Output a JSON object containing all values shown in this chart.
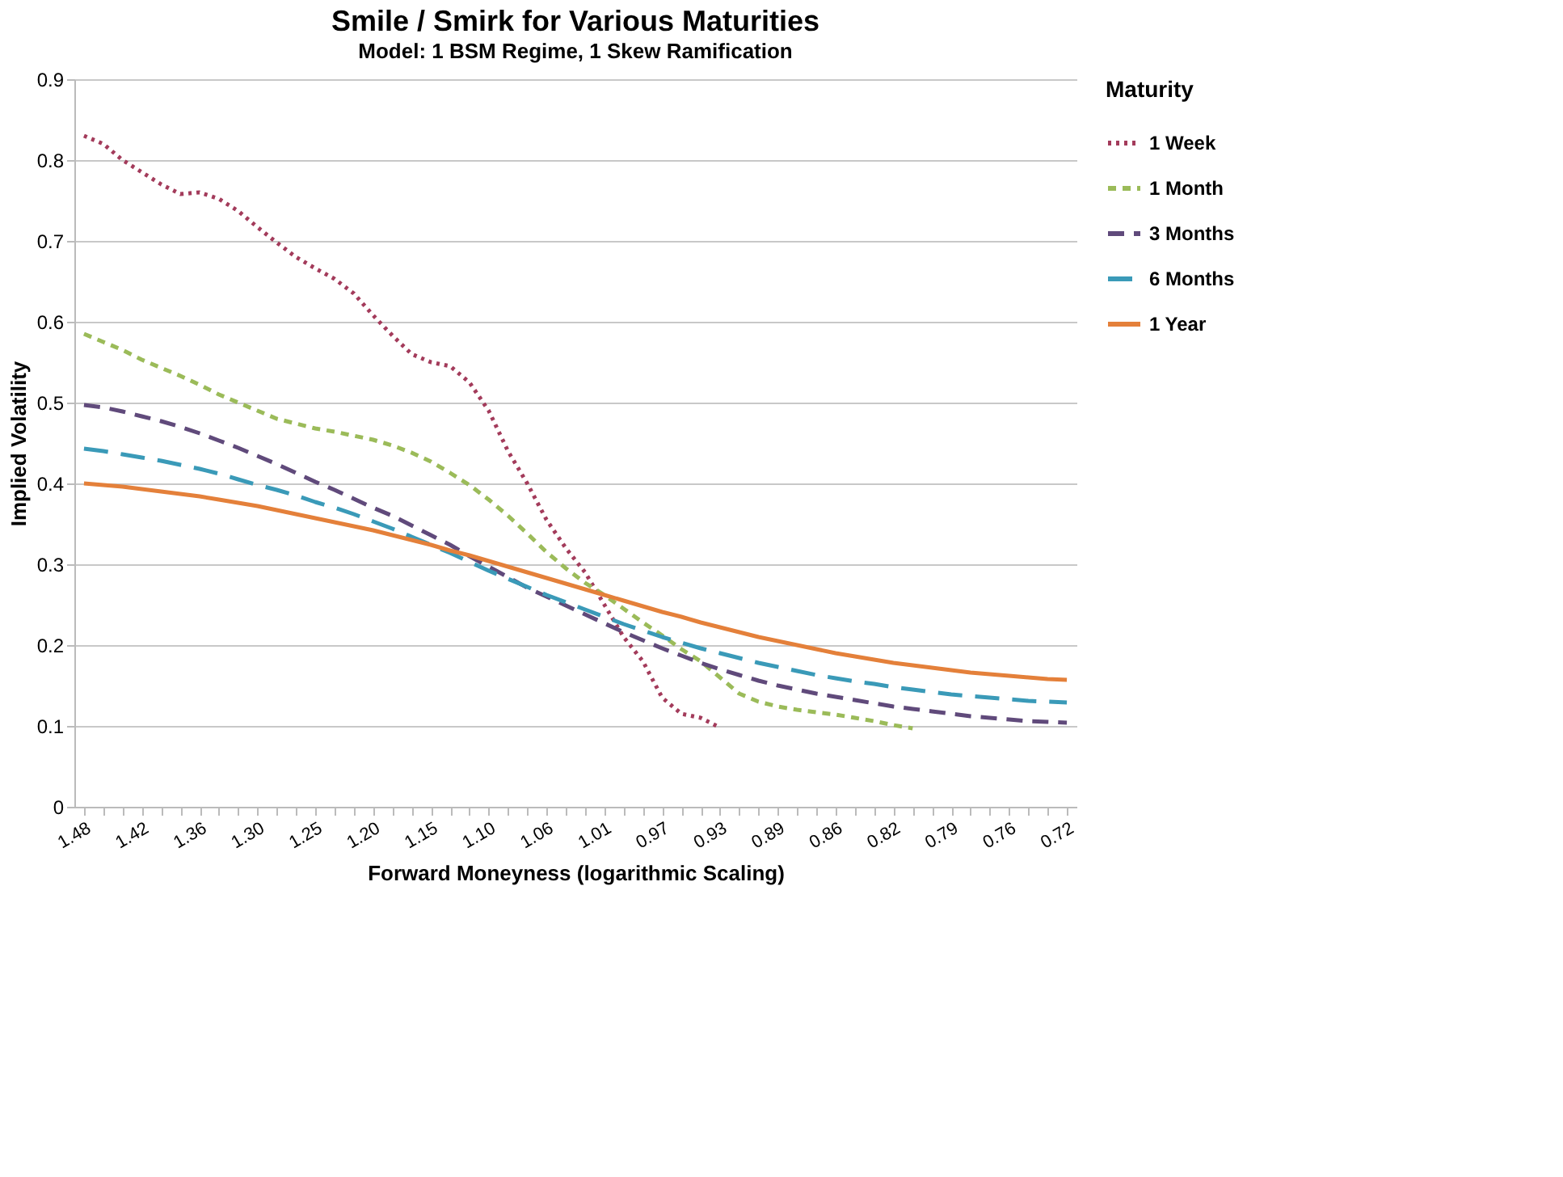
{
  "chart_data": {
    "type": "line",
    "title": "Smile / Smirk for Various Maturities",
    "subtitle": "Model: 1 BSM Regime, 1 Skew Ramification",
    "xlabel": "Forward Moneyness (logarithmic Scaling)",
    "ylabel": "Implied Volatility",
    "legend_title": "Maturity",
    "legend": "right",
    "grid": "y",
    "marker": "none",
    "categories": [
      "1.48",
      null,
      null,
      "1.42",
      null,
      null,
      "1.36",
      null,
      null,
      "1.30",
      null,
      null,
      "1.25",
      null,
      null,
      "1.20",
      null,
      null,
      "1.15",
      null,
      null,
      "1.10",
      null,
      null,
      "1.06",
      null,
      null,
      "1.01",
      null,
      null,
      "0.97",
      null,
      null,
      "0.93",
      null,
      null,
      "0.89",
      null,
      null,
      "0.86",
      null,
      null,
      "0.82",
      null,
      null,
      "0.79",
      null,
      null,
      "0.76",
      null,
      null,
      "0.72"
    ],
    "ylim": [
      0,
      0.9
    ],
    "yticks": [
      0,
      0.1,
      0.2,
      0.3,
      0.4,
      0.5,
      0.6,
      0.7,
      0.8,
      0.9
    ],
    "series": [
      {
        "name": "1 Week",
        "color": "#a33b5b",
        "line_style": "dotted",
        "values": [
          0.83,
          0.82,
          0.8,
          0.785,
          0.77,
          0.758,
          0.76,
          0.752,
          0.737,
          0.717,
          0.698,
          0.68,
          0.666,
          0.653,
          0.635,
          0.608,
          0.583,
          0.56,
          0.55,
          0.545,
          0.525,
          0.49,
          0.44,
          0.4,
          0.355,
          0.32,
          0.29,
          0.25,
          0.21,
          0.18,
          0.135,
          0.115,
          0.11,
          0.098,
          null,
          null,
          null,
          null,
          null,
          null,
          null,
          null,
          null,
          null,
          null,
          null,
          null,
          null,
          null,
          null,
          null,
          null
        ]
      },
      {
        "name": "1 Month",
        "color": "#9bbb59",
        "line_style": "dashed",
        "values": [
          0.585,
          0.575,
          0.565,
          0.553,
          0.543,
          0.533,
          0.522,
          0.51,
          0.5,
          0.49,
          0.48,
          0.474,
          0.468,
          0.464,
          0.459,
          0.454,
          0.447,
          0.438,
          0.427,
          0.413,
          0.398,
          0.38,
          0.36,
          0.338,
          0.315,
          0.295,
          0.277,
          0.262,
          0.245,
          0.228,
          0.212,
          0.195,
          0.18,
          0.16,
          0.14,
          0.13,
          0.124,
          0.12,
          0.117,
          0.114,
          0.11,
          0.106,
          0.101,
          0.097,
          null,
          null,
          null,
          null,
          null,
          null,
          null,
          null
        ]
      },
      {
        "name": "3 Months",
        "color": "#604a7b",
        "line_style": "dashed",
        "values": [
          0.497,
          0.494,
          0.489,
          0.483,
          0.477,
          0.47,
          0.462,
          0.453,
          0.444,
          0.434,
          0.424,
          0.413,
          0.402,
          0.392,
          0.381,
          0.37,
          0.36,
          0.348,
          0.336,
          0.324,
          0.31,
          0.297,
          0.284,
          0.271,
          0.26,
          0.249,
          0.238,
          0.227,
          0.216,
          0.206,
          0.196,
          0.187,
          0.178,
          0.17,
          0.163,
          0.156,
          0.15,
          0.145,
          0.14,
          0.136,
          0.132,
          0.128,
          0.124,
          0.121,
          0.118,
          0.115,
          0.112,
          0.11,
          0.108,
          0.106,
          0.105,
          0.104
        ]
      },
      {
        "name": "6 Months",
        "color": "#3a9ab8",
        "line_style": "dashed",
        "values": [
          0.443,
          0.44,
          0.436,
          0.432,
          0.428,
          0.423,
          0.418,
          0.412,
          0.405,
          0.398,
          0.392,
          0.385,
          0.377,
          0.37,
          0.362,
          0.353,
          0.344,
          0.334,
          0.324,
          0.314,
          0.303,
          0.292,
          0.282,
          0.272,
          0.262,
          0.253,
          0.244,
          0.235,
          0.226,
          0.218,
          0.21,
          0.203,
          0.196,
          0.19,
          0.184,
          0.178,
          0.173,
          0.168,
          0.163,
          0.159,
          0.155,
          0.152,
          0.148,
          0.145,
          0.142,
          0.139,
          0.137,
          0.135,
          0.133,
          0.131,
          0.13,
          0.129
        ]
      },
      {
        "name": "1 Year",
        "color": "#e4803a",
        "line_style": "solid",
        "values": [
          0.4,
          0.398,
          0.396,
          0.393,
          0.39,
          0.387,
          0.384,
          0.38,
          0.376,
          0.372,
          0.367,
          0.362,
          0.357,
          0.352,
          0.347,
          0.342,
          0.336,
          0.33,
          0.324,
          0.317,
          0.311,
          0.304,
          0.297,
          0.29,
          0.283,
          0.276,
          0.269,
          0.262,
          0.255,
          0.248,
          0.241,
          0.235,
          0.228,
          0.222,
          0.216,
          0.21,
          0.205,
          0.2,
          0.195,
          0.19,
          0.186,
          0.182,
          0.178,
          0.175,
          0.172,
          0.169,
          0.166,
          0.164,
          0.162,
          0.16,
          0.158,
          0.157
        ]
      }
    ]
  }
}
